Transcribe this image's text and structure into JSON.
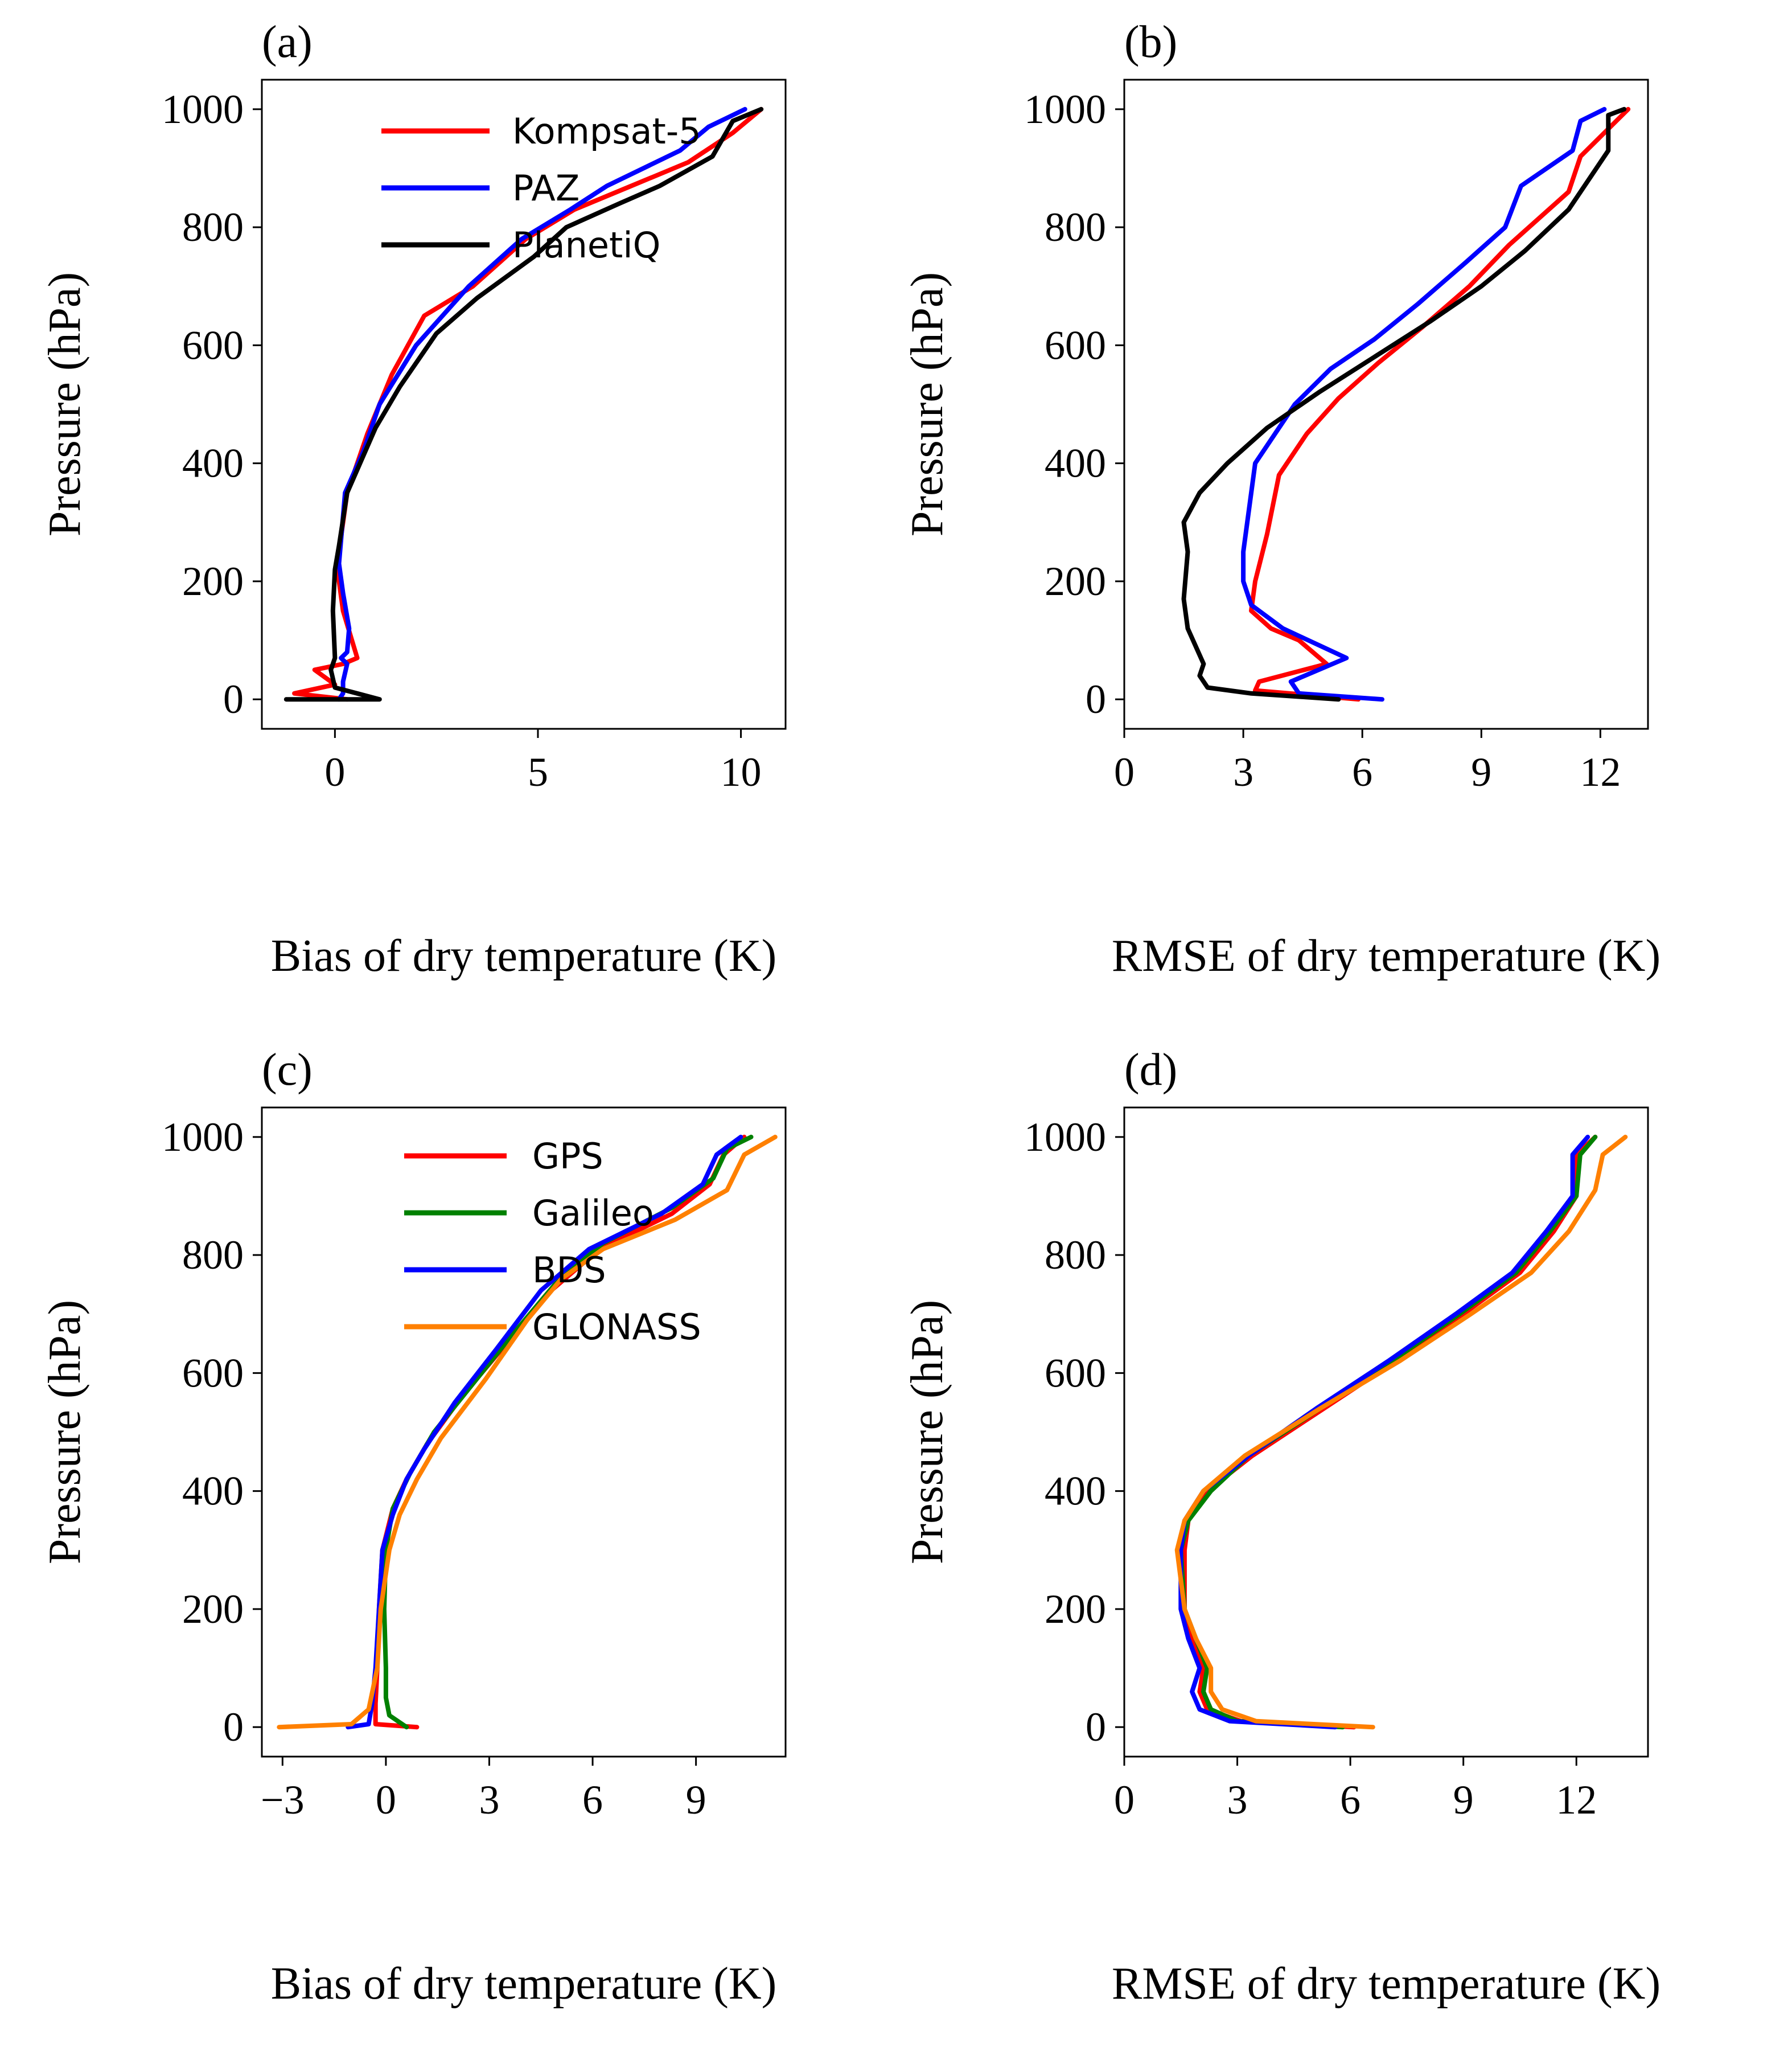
{
  "chart_data": [
    {
      "panel": "(a)",
      "type": "line",
      "xlabel": "Bias of dry temperature (K)",
      "ylabel": "Pressure (hPa)",
      "xlim": [
        -1.8,
        11.1
      ],
      "ylim": [
        1050,
        -50
      ],
      "xticks": [
        0,
        5,
        10
      ],
      "xtick_labels": [
        "0",
        "5",
        "10"
      ],
      "yticks": [
        0,
        200,
        400,
        600,
        800,
        1000
      ],
      "ytick_labels": [
        "0",
        "200",
        "400",
        "600",
        "800",
        "1000"
      ],
      "legend_position": "top-right",
      "series": [
        {
          "name": "Kompsat-5",
          "color": "#ff0000",
          "x": [
            0.3,
            -1.0,
            0.0,
            -0.5,
            0.2,
            0.55,
            0.2,
            0.1,
            0.1,
            0.3,
            0.8,
            1.4,
            2.2,
            3.4,
            4.7,
            5.9,
            7.3,
            8.7,
            9.8,
            10.5
          ],
          "y": [
            0,
            10,
            25,
            50,
            60,
            70,
            150,
            200,
            250,
            350,
            450,
            550,
            650,
            700,
            780,
            830,
            870,
            910,
            960,
            1000
          ]
        },
        {
          "name": "PAZ",
          "color": "#0000ff",
          "x": [
            0.1,
            0.2,
            0.2,
            0.3,
            0.15,
            0.3,
            0.35,
            0.2,
            0.1,
            0.25,
            0.7,
            1.1,
            2.0,
            3.3,
            4.6,
            5.8,
            6.7,
            8.5,
            9.2,
            10.1
          ],
          "y": [
            0,
            10,
            30,
            60,
            70,
            80,
            120,
            180,
            230,
            350,
            420,
            500,
            600,
            700,
            780,
            830,
            870,
            930,
            970,
            1000
          ]
        },
        {
          "name": "PlanetiQ",
          "color": "#000000",
          "x": [
            -1.2,
            1.1,
            0.0,
            -0.1,
            0.0,
            -0.05,
            0.0,
            0.1,
            0.3,
            1.0,
            1.6,
            2.5,
            3.5,
            4.9,
            5.7,
            7.0,
            8.0,
            9.3,
            9.8,
            10.5
          ],
          "y": [
            0,
            0,
            20,
            50,
            70,
            150,
            220,
            260,
            350,
            460,
            530,
            620,
            680,
            750,
            800,
            840,
            870,
            920,
            980,
            1000
          ]
        }
      ]
    },
    {
      "panel": "(b)",
      "type": "line",
      "xlabel": "RMSE of dry temperature (K)",
      "ylabel": "Pressure (hPa)",
      "xlim": [
        0,
        13.2
      ],
      "ylim": [
        1050,
        -50
      ],
      "xticks": [
        0,
        3,
        6,
        9,
        12
      ],
      "xtick_labels": [
        "0",
        "3",
        "6",
        "9",
        "12"
      ],
      "yticks": [
        0,
        200,
        400,
        600,
        800,
        1000
      ],
      "ytick_labels": [
        "0",
        "200",
        "400",
        "600",
        "800",
        "1000"
      ],
      "series": [
        {
          "name": "Kompsat-5",
          "color": "#ff0000",
          "x": [
            5.9,
            3.3,
            3.4,
            5.1,
            4.4,
            3.7,
            3.2,
            3.3,
            3.6,
            3.9,
            4.6,
            5.4,
            6.4,
            7.5,
            8.7,
            9.7,
            11.2,
            11.5,
            12.1,
            12.7
          ],
          "y": [
            0,
            15,
            30,
            60,
            100,
            120,
            150,
            200,
            280,
            380,
            450,
            510,
            570,
            630,
            700,
            770,
            860,
            920,
            960,
            1000
          ]
        },
        {
          "name": "PAZ",
          "color": "#0000ff",
          "x": [
            6.5,
            4.4,
            4.2,
            5.6,
            4.0,
            3.2,
            3.0,
            3.0,
            3.3,
            4.3,
            5.2,
            6.3,
            7.4,
            8.6,
            9.6,
            10.0,
            11.3,
            11.5,
            12.1
          ],
          "y": [
            0,
            10,
            30,
            70,
            120,
            160,
            200,
            250,
            400,
            500,
            560,
            610,
            670,
            740,
            800,
            870,
            930,
            980,
            1000
          ]
        },
        {
          "name": "PlanetiQ",
          "color": "#000000",
          "x": [
            5.4,
            3.2,
            2.1,
            1.9,
            2.0,
            1.6,
            1.5,
            1.6,
            1.5,
            1.9,
            2.6,
            3.6,
            4.9,
            6.3,
            7.7,
            9.0,
            10.1,
            11.2,
            12.2,
            12.2,
            12.6
          ],
          "y": [
            0,
            10,
            20,
            40,
            60,
            120,
            170,
            250,
            300,
            350,
            400,
            460,
            520,
            580,
            640,
            700,
            760,
            830,
            930,
            990,
            1000
          ]
        }
      ]
    },
    {
      "panel": "(c)",
      "type": "line",
      "xlabel": "Bias of dry temperature (K)",
      "ylabel": "Pressure (hPa)",
      "xlim": [
        -3.6,
        11.6
      ],
      "ylim": [
        1050,
        -50
      ],
      "xticks": [
        -3,
        0,
        3,
        6,
        9
      ],
      "xtick_labels": [
        "−3",
        "0",
        "3",
        "6",
        "9"
      ],
      "yticks": [
        0,
        200,
        400,
        600,
        800,
        1000
      ],
      "ytick_labels": [
        "0",
        "200",
        "400",
        "600",
        "800",
        "1000"
      ],
      "legend_position": "top-right",
      "series": [
        {
          "name": "GPS",
          "color": "#ff0000",
          "x": [
            0.9,
            -0.3,
            -0.3,
            -0.25,
            -0.2,
            -0.1,
            0.2,
            0.6,
            1.2,
            2.2,
            3.5,
            4.8,
            6.2,
            8.3,
            9.4,
            9.8,
            10.4
          ],
          "y": [
            0,
            5,
            40,
            100,
            200,
            300,
            370,
            420,
            480,
            560,
            650,
            740,
            810,
            870,
            920,
            970,
            1000
          ]
        },
        {
          "name": "Galileo",
          "color": "#008000",
          "x": [
            0.6,
            0.1,
            0.0,
            0.0,
            -0.05,
            0.0,
            0.2,
            0.7,
            1.4,
            2.5,
            3.6,
            4.9,
            6.3,
            8.3,
            9.5,
            9.9,
            10.6
          ],
          "y": [
            0,
            20,
            50,
            100,
            200,
            300,
            370,
            430,
            500,
            580,
            660,
            750,
            820,
            880,
            930,
            980,
            1000
          ]
        },
        {
          "name": "BDS",
          "color": "#0000ff",
          "x": [
            -1.1,
            -0.5,
            -0.4,
            -0.3,
            -0.2,
            -0.1,
            0.2,
            0.6,
            1.1,
            2.0,
            3.2,
            4.5,
            5.9,
            8.0,
            9.2,
            9.6,
            10.3
          ],
          "y": [
            0,
            5,
            40,
            100,
            200,
            300,
            360,
            420,
            470,
            550,
            640,
            740,
            810,
            870,
            920,
            970,
            1000
          ]
        },
        {
          "name": "GLONASS",
          "color": "#ff8000",
          "x": [
            -3.1,
            -1.0,
            -0.5,
            -0.25,
            -0.15,
            0.1,
            0.4,
            0.9,
            1.6,
            2.9,
            4.1,
            5.1,
            6.3,
            8.4,
            9.9,
            10.4,
            11.3
          ],
          "y": [
            0,
            5,
            30,
            100,
            200,
            300,
            360,
            420,
            490,
            590,
            690,
            760,
            810,
            860,
            910,
            970,
            1000
          ]
        }
      ]
    },
    {
      "panel": "(d)",
      "type": "line",
      "xlabel": "RMSE of dry temperature (K)",
      "ylabel": "Pressure (hPa)",
      "xlim": [
        0,
        13.9
      ],
      "ylim": [
        1050,
        -50
      ],
      "xticks": [
        0,
        3,
        6,
        9,
        12
      ],
      "xtick_labels": [
        "0",
        "3",
        "6",
        "9",
        "12"
      ],
      "yticks": [
        0,
        200,
        400,
        600,
        800,
        1000
      ],
      "ytick_labels": [
        "0",
        "200",
        "400",
        "600",
        "800",
        "1000"
      ],
      "series": [
        {
          "name": "GPS",
          "color": "#ff0000",
          "x": [
            6.1,
            3.1,
            2.2,
            2.0,
            2.1,
            1.8,
            1.6,
            1.6,
            1.7,
            2.2,
            3.4,
            5.3,
            7.2,
            9.0,
            10.5,
            11.4,
            12.0,
            12.0,
            12.5
          ],
          "y": [
            0,
            10,
            30,
            60,
            100,
            150,
            200,
            300,
            350,
            400,
            460,
            540,
            620,
            700,
            770,
            840,
            900,
            970,
            1000
          ]
        },
        {
          "name": "Galileo",
          "color": "#008000",
          "x": [
            5.8,
            3.0,
            2.3,
            2.1,
            2.2,
            1.9,
            1.6,
            1.5,
            1.7,
            2.3,
            3.3,
            5.2,
            7.1,
            8.9,
            10.4,
            11.3,
            12.0,
            12.1,
            12.5
          ],
          "y": [
            0,
            10,
            30,
            60,
            100,
            150,
            200,
            300,
            350,
            400,
            460,
            540,
            620,
            700,
            770,
            840,
            900,
            970,
            1000
          ]
        },
        {
          "name": "BDS",
          "color": "#0000ff",
          "x": [
            5.6,
            2.8,
            2.0,
            1.8,
            2.0,
            1.7,
            1.5,
            1.5,
            1.6,
            2.1,
            3.3,
            5.1,
            7.0,
            8.8,
            10.3,
            11.2,
            11.9,
            11.9,
            12.3
          ],
          "y": [
            0,
            10,
            30,
            60,
            100,
            150,
            200,
            300,
            350,
            400,
            460,
            540,
            620,
            700,
            770,
            840,
            900,
            970,
            1000
          ]
        },
        {
          "name": "GLONASS",
          "color": "#ff8000",
          "x": [
            6.6,
            3.5,
            2.6,
            2.3,
            2.3,
            1.9,
            1.6,
            1.4,
            1.6,
            2.1,
            3.2,
            5.2,
            7.3,
            9.2,
            10.8,
            11.8,
            12.5,
            12.7,
            13.3
          ],
          "y": [
            0,
            10,
            30,
            60,
            100,
            150,
            200,
            300,
            350,
            400,
            460,
            540,
            620,
            700,
            770,
            840,
            910,
            970,
            1000
          ]
        }
      ]
    }
  ]
}
